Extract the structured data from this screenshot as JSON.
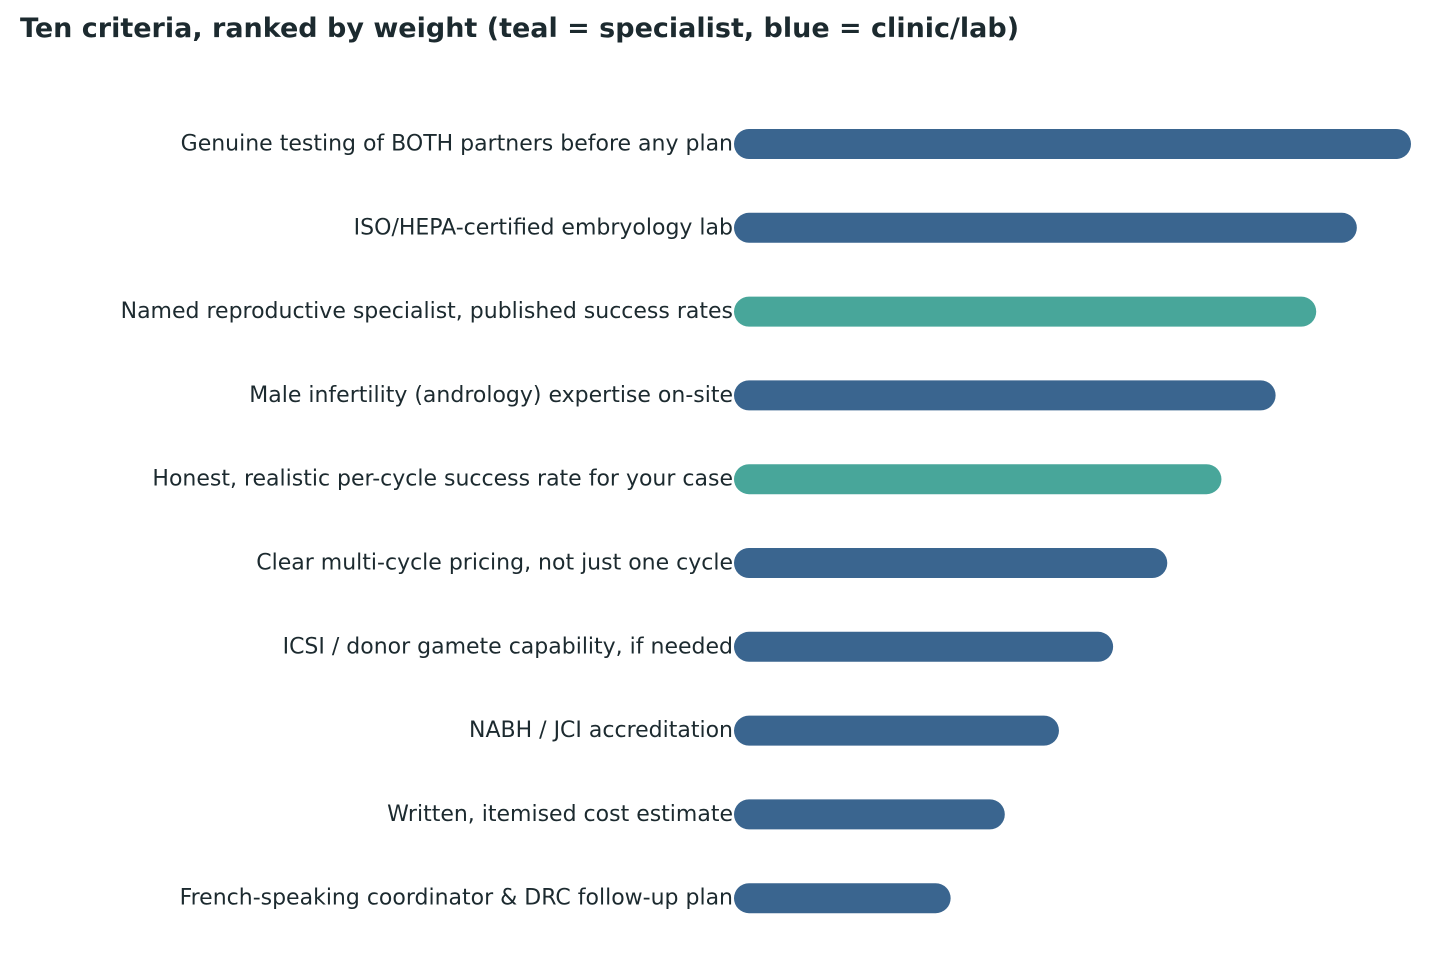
{
  "chart_data": {
    "type": "bar",
    "orientation": "horizontal",
    "title": "Ten criteria, ranked by weight (teal = specialist, blue = clinic/lab)",
    "xlabel": "",
    "ylabel": "",
    "xlim": [
      0,
      10
    ],
    "grid": false,
    "legend": "none",
    "colors": {
      "specialist": "#48a69a",
      "clinic_lab": "#3a658f"
    },
    "bars": [
      {
        "label": "Genuine testing of BOTH partners before any plan",
        "value": 10.0,
        "group": "clinic_lab"
      },
      {
        "label": "ISO/HEPA-certified embryology lab",
        "value": 9.2,
        "group": "clinic_lab"
      },
      {
        "label": "Named reproductive specialist, published success rates",
        "value": 8.6,
        "group": "specialist"
      },
      {
        "label": "Male infertility (andrology) expertise on-site",
        "value": 8.0,
        "group": "clinic_lab"
      },
      {
        "label": "Honest, realistic per-cycle success rate for your case",
        "value": 7.2,
        "group": "specialist"
      },
      {
        "label": "Clear multi-cycle pricing, not just one cycle",
        "value": 6.4,
        "group": "clinic_lab"
      },
      {
        "label": "ICSI / donor gamete capability, if needed",
        "value": 5.6,
        "group": "clinic_lab"
      },
      {
        "label": "NABH / JCI accreditation",
        "value": 4.8,
        "group": "clinic_lab"
      },
      {
        "label": "Written, itemised cost estimate",
        "value": 4.0,
        "group": "clinic_lab"
      },
      {
        "label": "French-speaking coordinator & DRC follow-up plan",
        "value": 3.2,
        "group": "clinic_lab"
      }
    ]
  }
}
